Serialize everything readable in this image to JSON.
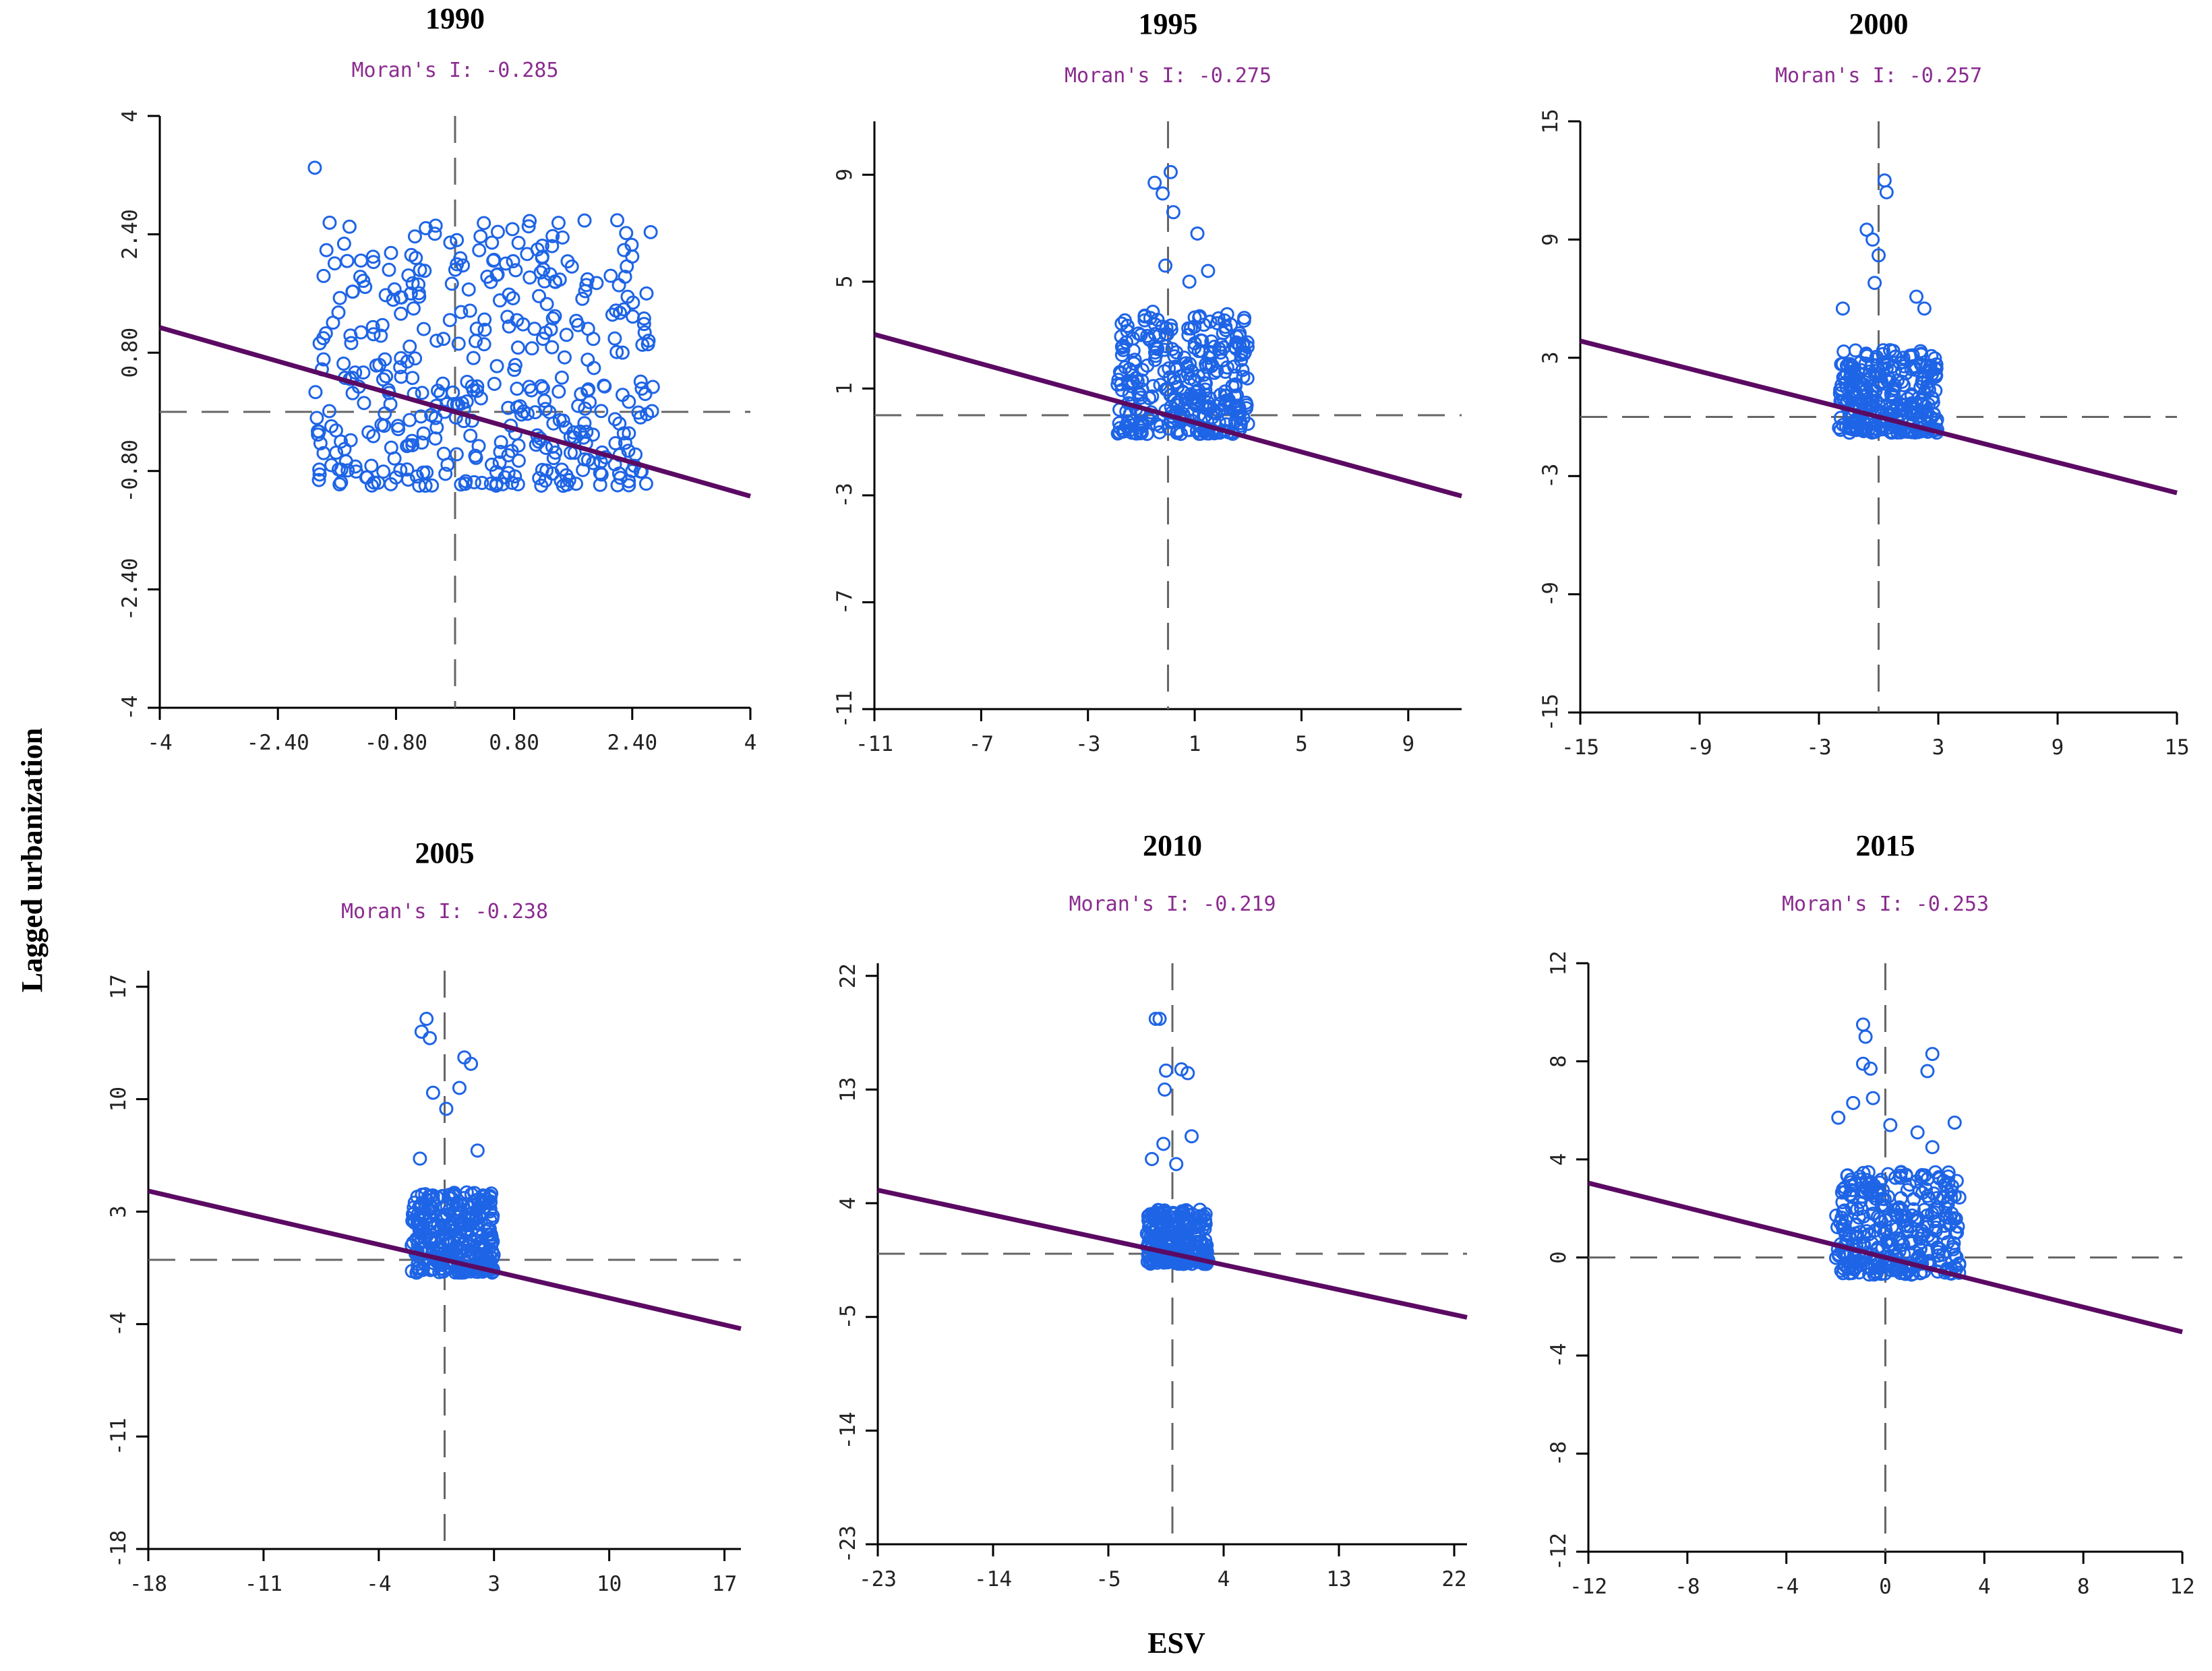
{
  "xlabel": "ESV",
  "ylabel": "Lagged urbanization",
  "colors": {
    "points": "#1e64e6",
    "regression": "#5b0a63",
    "moran_text": "#8a2c8f",
    "dash": "#666666"
  },
  "chart_data": [
    {
      "type": "scatter",
      "title": "1990",
      "subtitle": "Moran's I: -0.285",
      "moran_i": -0.285,
      "xlim": [
        -4,
        4
      ],
      "ylim": [
        -4,
        4
      ],
      "xticks": [
        -4,
        -2.4,
        -0.8,
        0.8,
        2.4,
        4
      ],
      "xtick_labels": [
        "-4",
        "-2.40",
        "-0.80",
        "0.80",
        "2.40",
        "4"
      ],
      "yticks": [
        -4,
        -2.4,
        -0.8,
        0.8,
        2.4,
        4
      ],
      "ytick_labels": [
        "-4",
        "-2.40",
        "-0.80",
        "0.80",
        "2.40",
        "4"
      ],
      "cluster": {
        "x": [
          -1.9,
          2.7
        ],
        "y": [
          -1.0,
          2.6
        ],
        "n": 420
      },
      "outliers": [
        [
          -1.9,
          3.3
        ],
        [
          2.4,
          -0.8
        ],
        [
          2.4,
          2.1
        ]
      ]
    },
    {
      "type": "scatter",
      "title": "1995",
      "subtitle": "Moran's I: -0.275",
      "moran_i": -0.275,
      "xlim": [
        -11,
        11
      ],
      "ylim": [
        -11,
        11
      ],
      "xticks": [
        -11,
        -7,
        -3,
        1,
        5,
        9
      ],
      "xtick_labels": [
        "-11",
        "-7",
        "-3",
        "1",
        "5",
        "9"
      ],
      "yticks": [
        -11,
        -7,
        -3,
        1,
        5,
        9
      ],
      "ytick_labels": [
        "-11",
        "-7",
        "-3",
        "1",
        "5",
        "9"
      ],
      "cluster": {
        "x": [
          -1.9,
          3
        ],
        "y": [
          -0.7,
          3.9
        ],
        "n": 320
      },
      "outliers": [
        [
          0.1,
          9.1
        ],
        [
          -0.5,
          8.7
        ],
        [
          -0.2,
          8.3
        ],
        [
          0.2,
          7.6
        ],
        [
          1.1,
          6.8
        ],
        [
          1.5,
          5.4
        ],
        [
          0.8,
          5.0
        ],
        [
          -0.1,
          5.6
        ]
      ]
    },
    {
      "type": "scatter",
      "title": "2000",
      "subtitle": "Moran's I: -0.257",
      "moran_i": -0.257,
      "xlim": [
        -15,
        15
      ],
      "ylim": [
        -15,
        15
      ],
      "xticks": [
        -15,
        -9,
        -3,
        3,
        9,
        15
      ],
      "xtick_labels": [
        "-15",
        "-9",
        "-3",
        "3",
        "9",
        "15"
      ],
      "yticks": [
        -15,
        -9,
        -3,
        3,
        9,
        15
      ],
      "ytick_labels": [
        "-15",
        "-9",
        "-3",
        "3",
        "9",
        "15"
      ],
      "cluster": {
        "x": [
          -2,
          3
        ],
        "y": [
          -0.8,
          3.4
        ],
        "n": 300
      },
      "outliers": [
        [
          0.3,
          12
        ],
        [
          0.4,
          11.4
        ],
        [
          -0.6,
          9.5
        ],
        [
          -0.3,
          9.0
        ],
        [
          0.0,
          8.2
        ],
        [
          1.9,
          6.1
        ],
        [
          2.3,
          5.5
        ],
        [
          -1.8,
          5.5
        ],
        [
          -0.2,
          6.8
        ]
      ]
    },
    {
      "type": "scatter",
      "title": "2005",
      "subtitle": "Moran's I: -0.238",
      "moran_i": -0.238,
      "xlim": [
        -18,
        18
      ],
      "ylim": [
        -18,
        18
      ],
      "xticks": [
        -18,
        -11,
        -4,
        3,
        10,
        17
      ],
      "xtick_labels": [
        "-18",
        "-11",
        "-4",
        "3",
        "10",
        "17"
      ],
      "yticks": [
        -18,
        -11,
        -4,
        3,
        10,
        17
      ],
      "ytick_labels": [
        "-18",
        "-11",
        "-4",
        "3",
        "10",
        "17"
      ],
      "cluster": {
        "x": [
          -2,
          3
        ],
        "y": [
          -0.8,
          4.2
        ],
        "n": 300
      },
      "outliers": [
        [
          -1.1,
          15
        ],
        [
          -1.4,
          14.2
        ],
        [
          -0.9,
          13.8
        ],
        [
          1.2,
          12.6
        ],
        [
          1.6,
          12.2
        ],
        [
          0.9,
          10.7
        ],
        [
          -0.7,
          10.4
        ],
        [
          0.1,
          9.4
        ],
        [
          2,
          6.8
        ],
        [
          -1.5,
          6.3
        ]
      ]
    },
    {
      "type": "scatter",
      "title": "2010",
      "subtitle": "Moran's I: -0.219",
      "moran_i": -0.219,
      "xlim": [
        -23,
        23
      ],
      "ylim": [
        -23,
        23
      ],
      "xticks": [
        -23,
        -14,
        -5,
        4,
        13,
        22
      ],
      "xtick_labels": [
        "-23",
        "-14",
        "-5",
        "4",
        "13",
        "22"
      ],
      "yticks": [
        -23,
        -14,
        -5,
        4,
        13,
        22
      ],
      "ytick_labels": [
        "-23",
        "-14",
        "-5",
        "4",
        "13",
        "22"
      ],
      "cluster": {
        "x": [
          -2,
          2.8
        ],
        "y": [
          -0.8,
          3.5
        ],
        "n": 260
      },
      "outliers": [
        [
          -1.3,
          18.6
        ],
        [
          -1.0,
          18.6
        ],
        [
          -0.5,
          14.5
        ],
        [
          0.7,
          14.6
        ],
        [
          1.2,
          14.3
        ],
        [
          -0.6,
          13
        ],
        [
          1.5,
          9.3
        ],
        [
          -0.7,
          8.7
        ],
        [
          0.3,
          7.1
        ],
        [
          -1.6,
          7.5
        ]
      ]
    },
    {
      "type": "scatter",
      "title": "2015",
      "subtitle": "Moran's I: -0.253",
      "moran_i": -0.253,
      "xlim": [
        -12,
        12
      ],
      "ylim": [
        -12,
        12
      ],
      "xticks": [
        -12,
        -8,
        -4,
        0,
        4,
        8,
        12
      ],
      "xtick_labels": [
        "-12",
        "-8",
        "-4",
        "0",
        "4",
        "8",
        "12"
      ],
      "yticks": [
        -12,
        -8,
        -4,
        0,
        4,
        8,
        12
      ],
      "ytick_labels": [
        "-12",
        "-8",
        "-4",
        "0",
        "4",
        "8",
        "12"
      ],
      "cluster": {
        "x": [
          -2,
          3
        ],
        "y": [
          -0.7,
          3.5
        ],
        "n": 340
      },
      "outliers": [
        [
          -0.9,
          9.5
        ],
        [
          -0.8,
          9.0
        ],
        [
          -0.9,
          7.9
        ],
        [
          -0.6,
          7.7
        ],
        [
          1.9,
          8.3
        ],
        [
          1.7,
          7.6
        ],
        [
          -1.3,
          6.3
        ],
        [
          -0.5,
          6.5
        ],
        [
          -1.9,
          5.7
        ],
        [
          2.8,
          5.5
        ],
        [
          0.2,
          5.4
        ],
        [
          1.3,
          5.1
        ],
        [
          1.9,
          4.5
        ]
      ]
    }
  ]
}
